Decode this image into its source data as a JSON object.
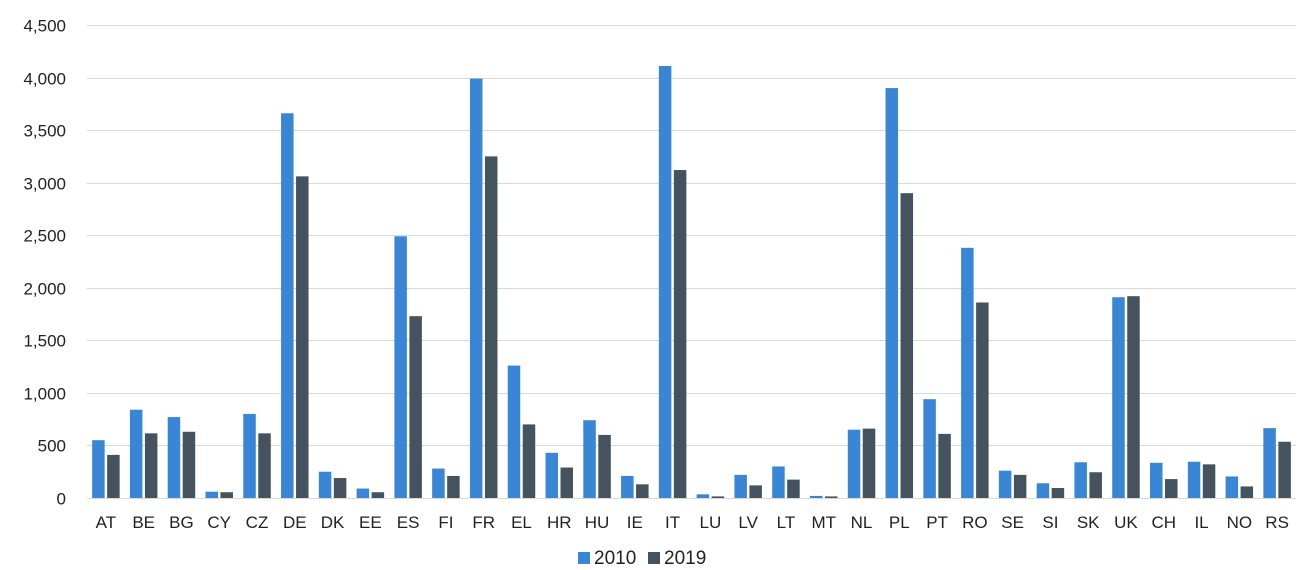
{
  "chart_data": {
    "type": "bar",
    "title": "",
    "xlabel": "",
    "ylabel": "",
    "ylim": [
      0,
      4500
    ],
    "yticks": [
      0,
      500,
      1000,
      1500,
      2000,
      2500,
      3000,
      3500,
      4000,
      4500
    ],
    "ytick_labels": [
      "0",
      "500",
      "1,000",
      "1,500",
      "2,000",
      "2,500",
      "3,000",
      "3,500",
      "4,000",
      "4,500"
    ],
    "grid": true,
    "legend_position": "bottom",
    "categories": [
      "AT",
      "BE",
      "BG",
      "CY",
      "CZ",
      "DE",
      "DK",
      "EE",
      "ES",
      "FI",
      "FR",
      "EL",
      "HR",
      "HU",
      "IE",
      "IT",
      "LU",
      "LV",
      "LT",
      "MT",
      "NL",
      "PL",
      "PT",
      "RO",
      "SE",
      "SI",
      "SK",
      "UK",
      "CH",
      "IL",
      "NO",
      "RS"
    ],
    "series": [
      {
        "name": "2010",
        "color": "#3a86d6",
        "values": [
          550,
          840,
          770,
          60,
          800,
          3660,
          250,
          90,
          2490,
          280,
          3990,
          1260,
          430,
          740,
          210,
          4110,
          35,
          220,
          300,
          20,
          650,
          3900,
          940,
          2380,
          260,
          140,
          340,
          1910,
          335,
          345,
          205,
          665
        ]
      },
      {
        "name": "2019",
        "color": "#44535e",
        "values": [
          410,
          615,
          630,
          55,
          615,
          3060,
          190,
          55,
          1730,
          210,
          3250,
          700,
          290,
          600,
          130,
          3120,
          15,
          120,
          175,
          15,
          660,
          2900,
          610,
          1860,
          220,
          95,
          245,
          1920,
          180,
          320,
          110,
          535
        ]
      }
    ]
  }
}
